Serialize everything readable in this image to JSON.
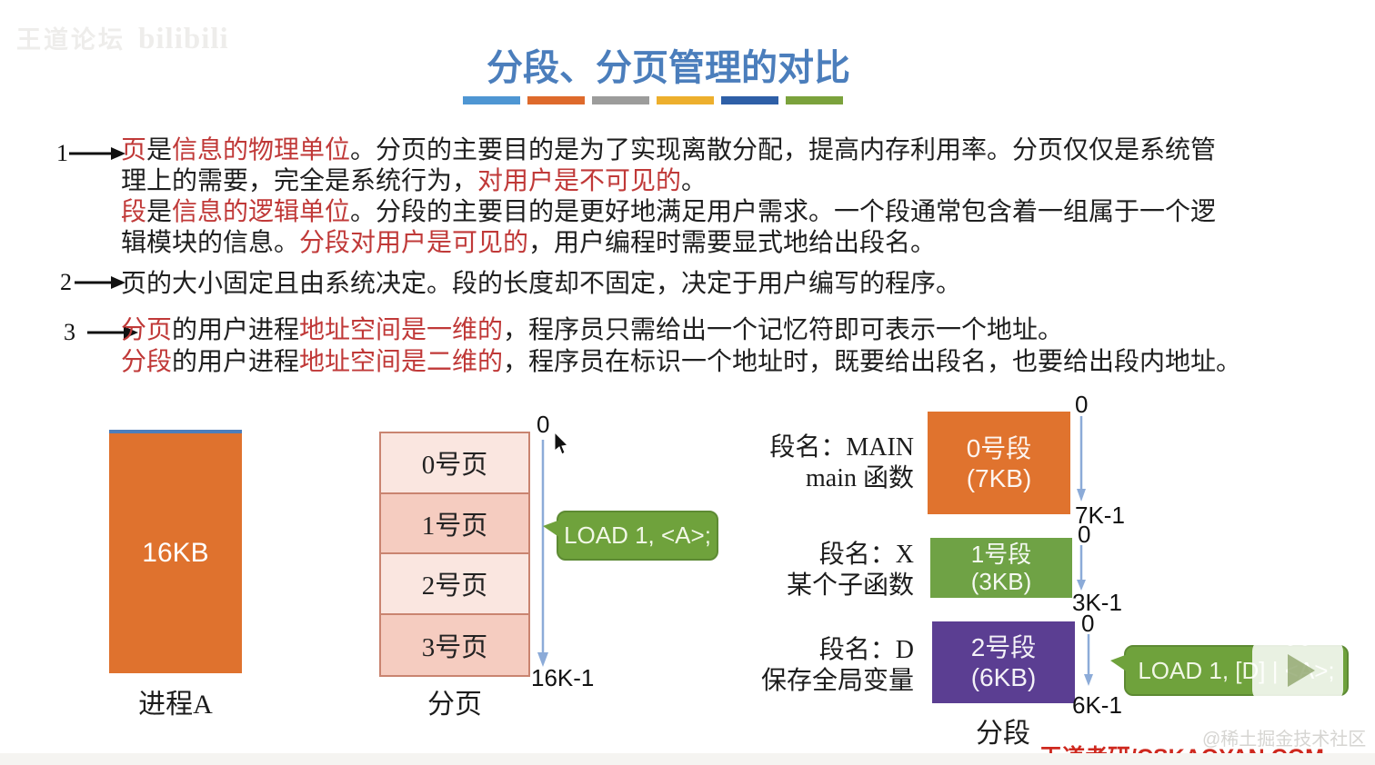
{
  "watermarks": {
    "top_left_text": "王道论坛",
    "top_left_logo": "bilibili",
    "juejin": "@稀土掘金技术社区",
    "brand": "王道考研/CSKAOYAN.COM"
  },
  "title": {
    "text": "分段、分页管理的对比",
    "color": "#4b7ebc",
    "underline_colors": [
      "#4e96d3",
      "#de6a2c",
      "#9c9c9b",
      "#edaf2d",
      "#2e5fa7",
      "#7ba23c"
    ]
  },
  "annotations": {
    "n1": "1",
    "n2": "2",
    "n3": "3"
  },
  "paragraphs": {
    "p1a": [
      {
        "t": "页",
        "c": "red"
      },
      {
        "t": "是",
        "c": "black"
      },
      {
        "t": "信息的物理单位",
        "c": "red"
      },
      {
        "t": "。分页的主要目的是为了实现离散分配，提高内存利用率。分页仅仅是系统管理上的需要，完全是系统行为，",
        "c": "black"
      },
      {
        "t": "对用户是不可见的",
        "c": "red"
      },
      {
        "t": "。",
        "c": "black"
      }
    ],
    "p1b": [
      {
        "t": "段",
        "c": "red"
      },
      {
        "t": "是",
        "c": "black"
      },
      {
        "t": "信息的逻辑单位",
        "c": "red"
      },
      {
        "t": "。分段的主要目的是更好地满足用户需求。一个段通常包含着一组属于一个逻辑模块的信息。",
        "c": "black"
      },
      {
        "t": "分段对用户是可见的",
        "c": "red"
      },
      {
        "t": "，用户编程时需要显式地给出段名。",
        "c": "black"
      }
    ],
    "p2": [
      {
        "t": "页的大小固定且由系统决定。段的长度却不固定，决定于用户编写的程序。",
        "c": "black"
      }
    ],
    "p3a": [
      {
        "t": "分页",
        "c": "red"
      },
      {
        "t": "的用户进程",
        "c": "black"
      },
      {
        "t": "地址空间是一维的",
        "c": "red"
      },
      {
        "t": "，程序员只需给出一个记忆符即可表示一个地址。",
        "c": "black"
      }
    ],
    "p3b": [
      {
        "t": "分段",
        "c": "red"
      },
      {
        "t": "的用户进程",
        "c": "black"
      },
      {
        "t": "地址空间是二维的",
        "c": "red"
      },
      {
        "t": "，程序员在标识一个地址时，既要给出段名，也要给出段内地址。",
        "c": "black"
      }
    ]
  },
  "process_diagram": {
    "size_label": "16KB",
    "caption": "进程A",
    "fill": "#df722e"
  },
  "paging_diagram": {
    "pages": [
      "0号页",
      "1号页",
      "2号页",
      "3号页"
    ],
    "caption": "分页",
    "addr_top": "0",
    "addr_bottom": "16K-1",
    "bubble": "LOAD 1, <A>;",
    "fill_light": "#fae6e0",
    "fill_dark": "#f5ccc0"
  },
  "segmentation_diagram": {
    "caption": "分段",
    "bubble": "LOAD 1, [D] | <A>;",
    "segments": [
      {
        "name1": "段名：MAIN",
        "name2": "main 函数",
        "box1": "0号段",
        "box2": "(7KB)",
        "addr_top": "0",
        "addr_bottom": "7K-1",
        "fill": "#e0732e"
      },
      {
        "name1": "段名：X",
        "name2": "某个子函数",
        "box1": "1号段",
        "box2": "(3KB)",
        "addr_top": "0",
        "addr_bottom": "3K-1",
        "fill": "#6fa245"
      },
      {
        "name1": "段名：D",
        "name2": "保存全局变量",
        "box1": "2号段",
        "box2": "(6KB)",
        "addr_top": "0",
        "addr_bottom": "6K-1",
        "fill": "#5b3e92"
      }
    ]
  },
  "colors": {
    "bubble_green": "#6fa23c",
    "arrow_blue": "#8cabd8",
    "page_border": "#c98470",
    "red_text": "#c03938",
    "brand_red": "#ce281e"
  }
}
